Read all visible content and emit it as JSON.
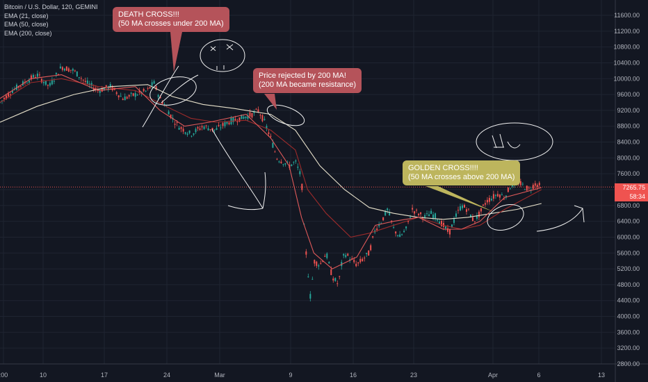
{
  "legend": {
    "symbol": "Bitcoin / U.S. Dollar, 120, GEMINI",
    "ema21": "EMA (21, close)",
    "ema50": "EMA (50, close)",
    "ema200": "EMA (200, close)"
  },
  "annotations": {
    "death_cross": [
      "DEATH CROSS!!!",
      "(50 MA crosses under 200 MA)"
    ],
    "rejected": [
      "Price rejected by 200 MA!",
      "(200 MA became resistance)"
    ],
    "golden_cross": [
      "GOLDEN CROSS!!!!",
      "(50 MA crosses above 200 MA)"
    ]
  },
  "current_price": "7265.75",
  "countdown": "58:34",
  "colors": {
    "background": "#131722",
    "ema21": "#e05a5a",
    "ema50": "#9c2b2b",
    "ema200": "#e8e2cc",
    "up": "#26a69a",
    "down": "#ef5350",
    "price_line": "#ef5350",
    "callout_red": "#b5535a",
    "callout_gold": "#bdb55d"
  },
  "chart_data": {
    "type": "line",
    "y_ticks": [
      "11600.00",
      "11200.00",
      "10800.00",
      "10400.00",
      "10000.00",
      "9600.00",
      "9200.00",
      "8800.00",
      "8400.00",
      "8000.00",
      "7600.00",
      "7200.00",
      "6800.00",
      "6400.00",
      "6000.00",
      "5600.00",
      "5200.00",
      "4800.00",
      "4400.00",
      "4000.00",
      "3600.00",
      "3200.00",
      "2800.00"
    ],
    "x_ticks": [
      ":00",
      "10",
      "17",
      "24",
      "Mar",
      "9",
      "16",
      "23",
      "Apr",
      "6",
      "13"
    ],
    "ylim": [
      2700,
      11900
    ],
    "series": [
      {
        "name": "EMA (200, close)",
        "x": [
          0,
          0.06,
          0.12,
          0.18,
          0.24,
          0.28,
          0.33,
          0.38,
          0.44,
          0.48,
          0.52,
          0.56,
          0.6,
          0.64,
          0.68,
          0.72,
          0.76,
          0.8,
          0.84,
          0.88
        ],
        "values": [
          8900,
          9300,
          9600,
          9800,
          9850,
          9550,
          9350,
          9250,
          9100,
          8700,
          7800,
          7200,
          6750,
          6600,
          6500,
          6450,
          6500,
          6600,
          6700,
          6850
        ]
      },
      {
        "name": "EMA (50, close)",
        "x": [
          0,
          0.05,
          0.1,
          0.16,
          0.22,
          0.27,
          0.31,
          0.35,
          0.4,
          0.44,
          0.48,
          0.5,
          0.53,
          0.57,
          0.6,
          0.64,
          0.68,
          0.72,
          0.75,
          0.78,
          0.82,
          0.88
        ],
        "values": [
          9400,
          9900,
          10000,
          9800,
          9700,
          9300,
          9000,
          8900,
          8950,
          8700,
          8200,
          7200,
          6600,
          6000,
          6100,
          6300,
          6500,
          6300,
          6200,
          6300,
          6700,
          7200
        ]
      },
      {
        "name": "EMA (21, close)",
        "x": [
          0,
          0.05,
          0.1,
          0.16,
          0.22,
          0.26,
          0.3,
          0.34,
          0.4,
          0.44,
          0.47,
          0.49,
          0.51,
          0.54,
          0.58,
          0.61,
          0.64,
          0.68,
          0.72,
          0.75,
          0.78,
          0.82,
          0.88
        ],
        "values": [
          9500,
          10000,
          10100,
          9700,
          9800,
          9200,
          8800,
          8900,
          9100,
          8500,
          7800,
          6500,
          5600,
          5200,
          5500,
          6300,
          6400,
          6500,
          6200,
          6200,
          6400,
          7000,
          7250
        ]
      }
    ],
    "price": [
      [
        0,
        9400
      ],
      [
        0.02,
        9700
      ],
      [
        0.04,
        9900
      ],
      [
        0.06,
        10100
      ],
      [
        0.08,
        9800
      ],
      [
        0.1,
        10300
      ],
      [
        0.12,
        10200
      ],
      [
        0.14,
        9900
      ],
      [
        0.16,
        9700
      ],
      [
        0.18,
        9800
      ],
      [
        0.2,
        9500
      ],
      [
        0.22,
        9600
      ],
      [
        0.24,
        9700
      ],
      [
        0.25,
        9900
      ],
      [
        0.26,
        9500
      ],
      [
        0.27,
        9300
      ],
      [
        0.28,
        9000
      ],
      [
        0.29,
        8800
      ],
      [
        0.31,
        8600
      ],
      [
        0.33,
        8800
      ],
      [
        0.35,
        8700
      ],
      [
        0.37,
        8900
      ],
      [
        0.39,
        9000
      ],
      [
        0.41,
        9100
      ],
      [
        0.42,
        9200
      ],
      [
        0.43,
        8900
      ],
      [
        0.44,
        8500
      ],
      [
        0.45,
        8000
      ],
      [
        0.46,
        7900
      ],
      [
        0.47,
        7800
      ],
      [
        0.48,
        7900
      ],
      [
        0.49,
        7500
      ],
      [
        0.495,
        6000
      ],
      [
        0.5,
        5200
      ],
      [
        0.505,
        4400
      ],
      [
        0.51,
        5400
      ],
      [
        0.52,
        5300
      ],
      [
        0.53,
        5600
      ],
      [
        0.54,
        5000
      ],
      [
        0.55,
        4800
      ],
      [
        0.555,
        5300
      ],
      [
        0.56,
        5600
      ],
      [
        0.58,
        5300
      ],
      [
        0.6,
        5600
      ],
      [
        0.61,
        6200
      ],
      [
        0.62,
        6400
      ],
      [
        0.63,
        6700
      ],
      [
        0.64,
        6200
      ],
      [
        0.65,
        6000
      ],
      [
        0.66,
        6200
      ],
      [
        0.67,
        6700
      ],
      [
        0.69,
        6500
      ],
      [
        0.7,
        6600
      ],
      [
        0.71,
        6500
      ],
      [
        0.72,
        6300
      ],
      [
        0.73,
        6100
      ],
      [
        0.74,
        6500
      ],
      [
        0.75,
        6800
      ],
      [
        0.76,
        6700
      ],
      [
        0.77,
        6400
      ],
      [
        0.78,
        6600
      ],
      [
        0.79,
        6900
      ],
      [
        0.8,
        7000
      ],
      [
        0.81,
        7100
      ],
      [
        0.82,
        7000
      ],
      [
        0.83,
        7300
      ],
      [
        0.84,
        7400
      ],
      [
        0.85,
        7300
      ],
      [
        0.86,
        7200
      ],
      [
        0.87,
        7350
      ],
      [
        0.88,
        7265
      ]
    ],
    "current_price": 7265.75
  }
}
